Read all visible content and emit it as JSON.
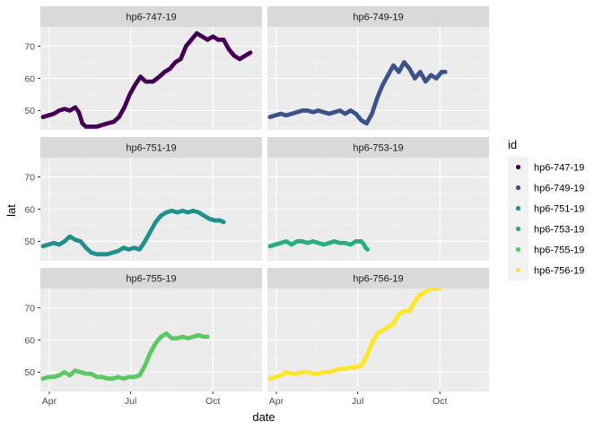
{
  "chart_data": {
    "type": "scatter",
    "layout": "facet_wrap",
    "ncol": 2,
    "xlabel": "date",
    "ylabel": "lat",
    "x_ticks": [
      "Apr",
      "Jul",
      "Oct"
    ],
    "x_tick_dates": [
      "2019-04-01",
      "2019-07-01",
      "2019-10-01"
    ],
    "xlim": [
      "2019-03-22",
      "2019-11-25"
    ],
    "y_ticks": [
      50,
      60,
      70
    ],
    "ylim": [
      44,
      76
    ],
    "grid": true,
    "legend": {
      "title": "id",
      "placement": "right",
      "entries": [
        {
          "label": "hp6-747-19",
          "color": "#440154"
        },
        {
          "label": "hp6-749-19",
          "color": "#3B528B"
        },
        {
          "label": "hp6-751-19",
          "color": "#21908C"
        },
        {
          "label": "hp6-753-19",
          "color": "#27AD81"
        },
        {
          "label": "hp6-755-19",
          "color": "#5DC863"
        },
        {
          "label": "hp6-756-19",
          "color": "#FDE725"
        }
      ]
    },
    "panels": [
      {
        "name": "hp6-747-19",
        "color": "#440154",
        "points": [
          [
            "2019-03-25",
            48
          ],
          [
            "2019-03-31",
            48.5
          ],
          [
            "2019-04-06",
            49
          ],
          [
            "2019-04-12",
            50
          ],
          [
            "2019-04-18",
            50.5
          ],
          [
            "2019-04-24",
            50
          ],
          [
            "2019-04-30",
            51
          ],
          [
            "2019-05-04",
            49.5
          ],
          [
            "2019-05-08",
            46
          ],
          [
            "2019-05-12",
            45
          ],
          [
            "2019-05-18",
            45
          ],
          [
            "2019-05-24",
            45
          ],
          [
            "2019-05-30",
            45.5
          ],
          [
            "2019-06-05",
            46
          ],
          [
            "2019-06-12",
            46.5
          ],
          [
            "2019-06-18",
            48
          ],
          [
            "2019-06-24",
            51
          ],
          [
            "2019-06-30",
            55
          ],
          [
            "2019-07-06",
            58
          ],
          [
            "2019-07-12",
            60.5
          ],
          [
            "2019-07-18",
            59
          ],
          [
            "2019-07-26",
            59
          ],
          [
            "2019-08-02",
            60.5
          ],
          [
            "2019-08-08",
            62
          ],
          [
            "2019-08-14",
            63
          ],
          [
            "2019-08-20",
            65
          ],
          [
            "2019-08-26",
            66
          ],
          [
            "2019-09-01",
            70
          ],
          [
            "2019-09-07",
            72
          ],
          [
            "2019-09-13",
            74
          ],
          [
            "2019-09-19",
            73
          ],
          [
            "2019-09-25",
            72
          ],
          [
            "2019-10-01",
            73
          ],
          [
            "2019-10-07",
            72
          ],
          [
            "2019-10-13",
            72
          ],
          [
            "2019-10-19",
            69
          ],
          [
            "2019-10-25",
            67
          ],
          [
            "2019-10-31",
            66
          ],
          [
            "2019-11-06",
            67
          ],
          [
            "2019-11-12",
            68
          ]
        ]
      },
      {
        "name": "hp6-749-19",
        "color": "#3B528B",
        "points": [
          [
            "2019-03-25",
            48
          ],
          [
            "2019-03-31",
            48.5
          ],
          [
            "2019-04-06",
            49
          ],
          [
            "2019-04-12",
            48.5
          ],
          [
            "2019-04-18",
            49
          ],
          [
            "2019-04-24",
            49.5
          ],
          [
            "2019-04-30",
            50
          ],
          [
            "2019-05-06",
            50
          ],
          [
            "2019-05-12",
            49.5
          ],
          [
            "2019-05-18",
            50
          ],
          [
            "2019-05-24",
            49.5
          ],
          [
            "2019-05-30",
            49
          ],
          [
            "2019-06-05",
            49.5
          ],
          [
            "2019-06-11",
            50
          ],
          [
            "2019-06-17",
            49
          ],
          [
            "2019-06-23",
            50
          ],
          [
            "2019-06-29",
            49
          ],
          [
            "2019-07-05",
            47
          ],
          [
            "2019-07-11",
            46
          ],
          [
            "2019-07-17",
            49
          ],
          [
            "2019-07-23",
            54
          ],
          [
            "2019-07-29",
            58
          ],
          [
            "2019-08-04",
            61
          ],
          [
            "2019-08-10",
            64
          ],
          [
            "2019-08-16",
            62
          ],
          [
            "2019-08-22",
            65
          ],
          [
            "2019-08-28",
            63
          ],
          [
            "2019-09-03",
            60
          ],
          [
            "2019-09-09",
            62
          ],
          [
            "2019-09-15",
            59
          ],
          [
            "2019-09-21",
            61
          ],
          [
            "2019-09-27",
            60
          ],
          [
            "2019-10-03",
            62
          ],
          [
            "2019-10-07",
            62
          ]
        ]
      },
      {
        "name": "hp6-751-19",
        "color": "#21908C",
        "points": [
          [
            "2019-03-25",
            48.5
          ],
          [
            "2019-03-31",
            49
          ],
          [
            "2019-04-06",
            49.5
          ],
          [
            "2019-04-12",
            49
          ],
          [
            "2019-04-18",
            50
          ],
          [
            "2019-04-24",
            51.5
          ],
          [
            "2019-04-30",
            50.5
          ],
          [
            "2019-05-06",
            50
          ],
          [
            "2019-05-12",
            48
          ],
          [
            "2019-05-18",
            46.5
          ],
          [
            "2019-05-24",
            46
          ],
          [
            "2019-05-30",
            46
          ],
          [
            "2019-06-05",
            46
          ],
          [
            "2019-06-11",
            46.5
          ],
          [
            "2019-06-17",
            47
          ],
          [
            "2019-06-23",
            48
          ],
          [
            "2019-06-29",
            47.5
          ],
          [
            "2019-07-05",
            48
          ],
          [
            "2019-07-11",
            47.5
          ],
          [
            "2019-07-17",
            50
          ],
          [
            "2019-07-23",
            53
          ],
          [
            "2019-07-29",
            56
          ],
          [
            "2019-08-04",
            58
          ],
          [
            "2019-08-10",
            59
          ],
          [
            "2019-08-16",
            59.5
          ],
          [
            "2019-08-22",
            59
          ],
          [
            "2019-08-28",
            59.5
          ],
          [
            "2019-09-03",
            59
          ],
          [
            "2019-09-09",
            59.5
          ],
          [
            "2019-09-15",
            59
          ],
          [
            "2019-09-21",
            58
          ],
          [
            "2019-09-27",
            57
          ],
          [
            "2019-10-03",
            56.5
          ],
          [
            "2019-10-09",
            56.5
          ],
          [
            "2019-10-13",
            56
          ]
        ]
      },
      {
        "name": "hp6-753-19",
        "color": "#27AD81",
        "points": [
          [
            "2019-03-25",
            48.5
          ],
          [
            "2019-03-31",
            49
          ],
          [
            "2019-04-06",
            49.5
          ],
          [
            "2019-04-12",
            50
          ],
          [
            "2019-04-18",
            49
          ],
          [
            "2019-04-24",
            50
          ],
          [
            "2019-04-30",
            50
          ],
          [
            "2019-05-06",
            49.5
          ],
          [
            "2019-05-12",
            50
          ],
          [
            "2019-05-18",
            49.5
          ],
          [
            "2019-05-24",
            49
          ],
          [
            "2019-05-30",
            49.5
          ],
          [
            "2019-06-05",
            50
          ],
          [
            "2019-06-11",
            49.5
          ],
          [
            "2019-06-17",
            49.5
          ],
          [
            "2019-06-23",
            49
          ],
          [
            "2019-06-29",
            50
          ],
          [
            "2019-07-05",
            50
          ],
          [
            "2019-07-08",
            49
          ],
          [
            "2019-07-10",
            48
          ],
          [
            "2019-07-12",
            47.5
          ]
        ]
      },
      {
        "name": "hp6-755-19",
        "color": "#5DC863",
        "points": [
          [
            "2019-03-25",
            48
          ],
          [
            "2019-03-31",
            48.5
          ],
          [
            "2019-04-06",
            48.5
          ],
          [
            "2019-04-12",
            49
          ],
          [
            "2019-04-18",
            50
          ],
          [
            "2019-04-24",
            49
          ],
          [
            "2019-04-30",
            50.5
          ],
          [
            "2019-05-06",
            50
          ],
          [
            "2019-05-12",
            49.5
          ],
          [
            "2019-05-18",
            49.5
          ],
          [
            "2019-05-24",
            48.5
          ],
          [
            "2019-05-30",
            48.5
          ],
          [
            "2019-06-05",
            48
          ],
          [
            "2019-06-11",
            48
          ],
          [
            "2019-06-17",
            48.5
          ],
          [
            "2019-06-23",
            48
          ],
          [
            "2019-06-29",
            48.5
          ],
          [
            "2019-07-05",
            48.5
          ],
          [
            "2019-07-11",
            49
          ],
          [
            "2019-07-17",
            52
          ],
          [
            "2019-07-23",
            56
          ],
          [
            "2019-07-29",
            59
          ],
          [
            "2019-08-04",
            61
          ],
          [
            "2019-08-10",
            62
          ],
          [
            "2019-08-16",
            60.5
          ],
          [
            "2019-08-22",
            60.5
          ],
          [
            "2019-08-28",
            61
          ],
          [
            "2019-09-03",
            60.5
          ],
          [
            "2019-09-09",
            61
          ],
          [
            "2019-09-15",
            61.5
          ],
          [
            "2019-09-21",
            61
          ],
          [
            "2019-09-25",
            61
          ]
        ]
      },
      {
        "name": "hp6-756-19",
        "color": "#FDE725",
        "points": [
          [
            "2019-03-25",
            48
          ],
          [
            "2019-03-31",
            48.5
          ],
          [
            "2019-04-06",
            49
          ],
          [
            "2019-04-12",
            50
          ],
          [
            "2019-04-18",
            49.5
          ],
          [
            "2019-04-24",
            49.5
          ],
          [
            "2019-04-30",
            50
          ],
          [
            "2019-05-06",
            50
          ],
          [
            "2019-05-12",
            49.5
          ],
          [
            "2019-05-18",
            49.5
          ],
          [
            "2019-05-24",
            50
          ],
          [
            "2019-05-30",
            50
          ],
          [
            "2019-06-05",
            50.5
          ],
          [
            "2019-06-11",
            51
          ],
          [
            "2019-06-17",
            51
          ],
          [
            "2019-06-23",
            51.5
          ],
          [
            "2019-06-29",
            51.5
          ],
          [
            "2019-07-05",
            52
          ],
          [
            "2019-07-11",
            55
          ],
          [
            "2019-07-17",
            59
          ],
          [
            "2019-07-23",
            62
          ],
          [
            "2019-07-29",
            63
          ],
          [
            "2019-08-04",
            64
          ],
          [
            "2019-08-10",
            65
          ],
          [
            "2019-08-16",
            68
          ],
          [
            "2019-08-22",
            69
          ],
          [
            "2019-08-28",
            69
          ],
          [
            "2019-09-03",
            72
          ],
          [
            "2019-09-09",
            74
          ],
          [
            "2019-09-15",
            75
          ],
          [
            "2019-09-21",
            76
          ],
          [
            "2019-09-27",
            76
          ],
          [
            "2019-10-01",
            76
          ]
        ]
      }
    ]
  }
}
